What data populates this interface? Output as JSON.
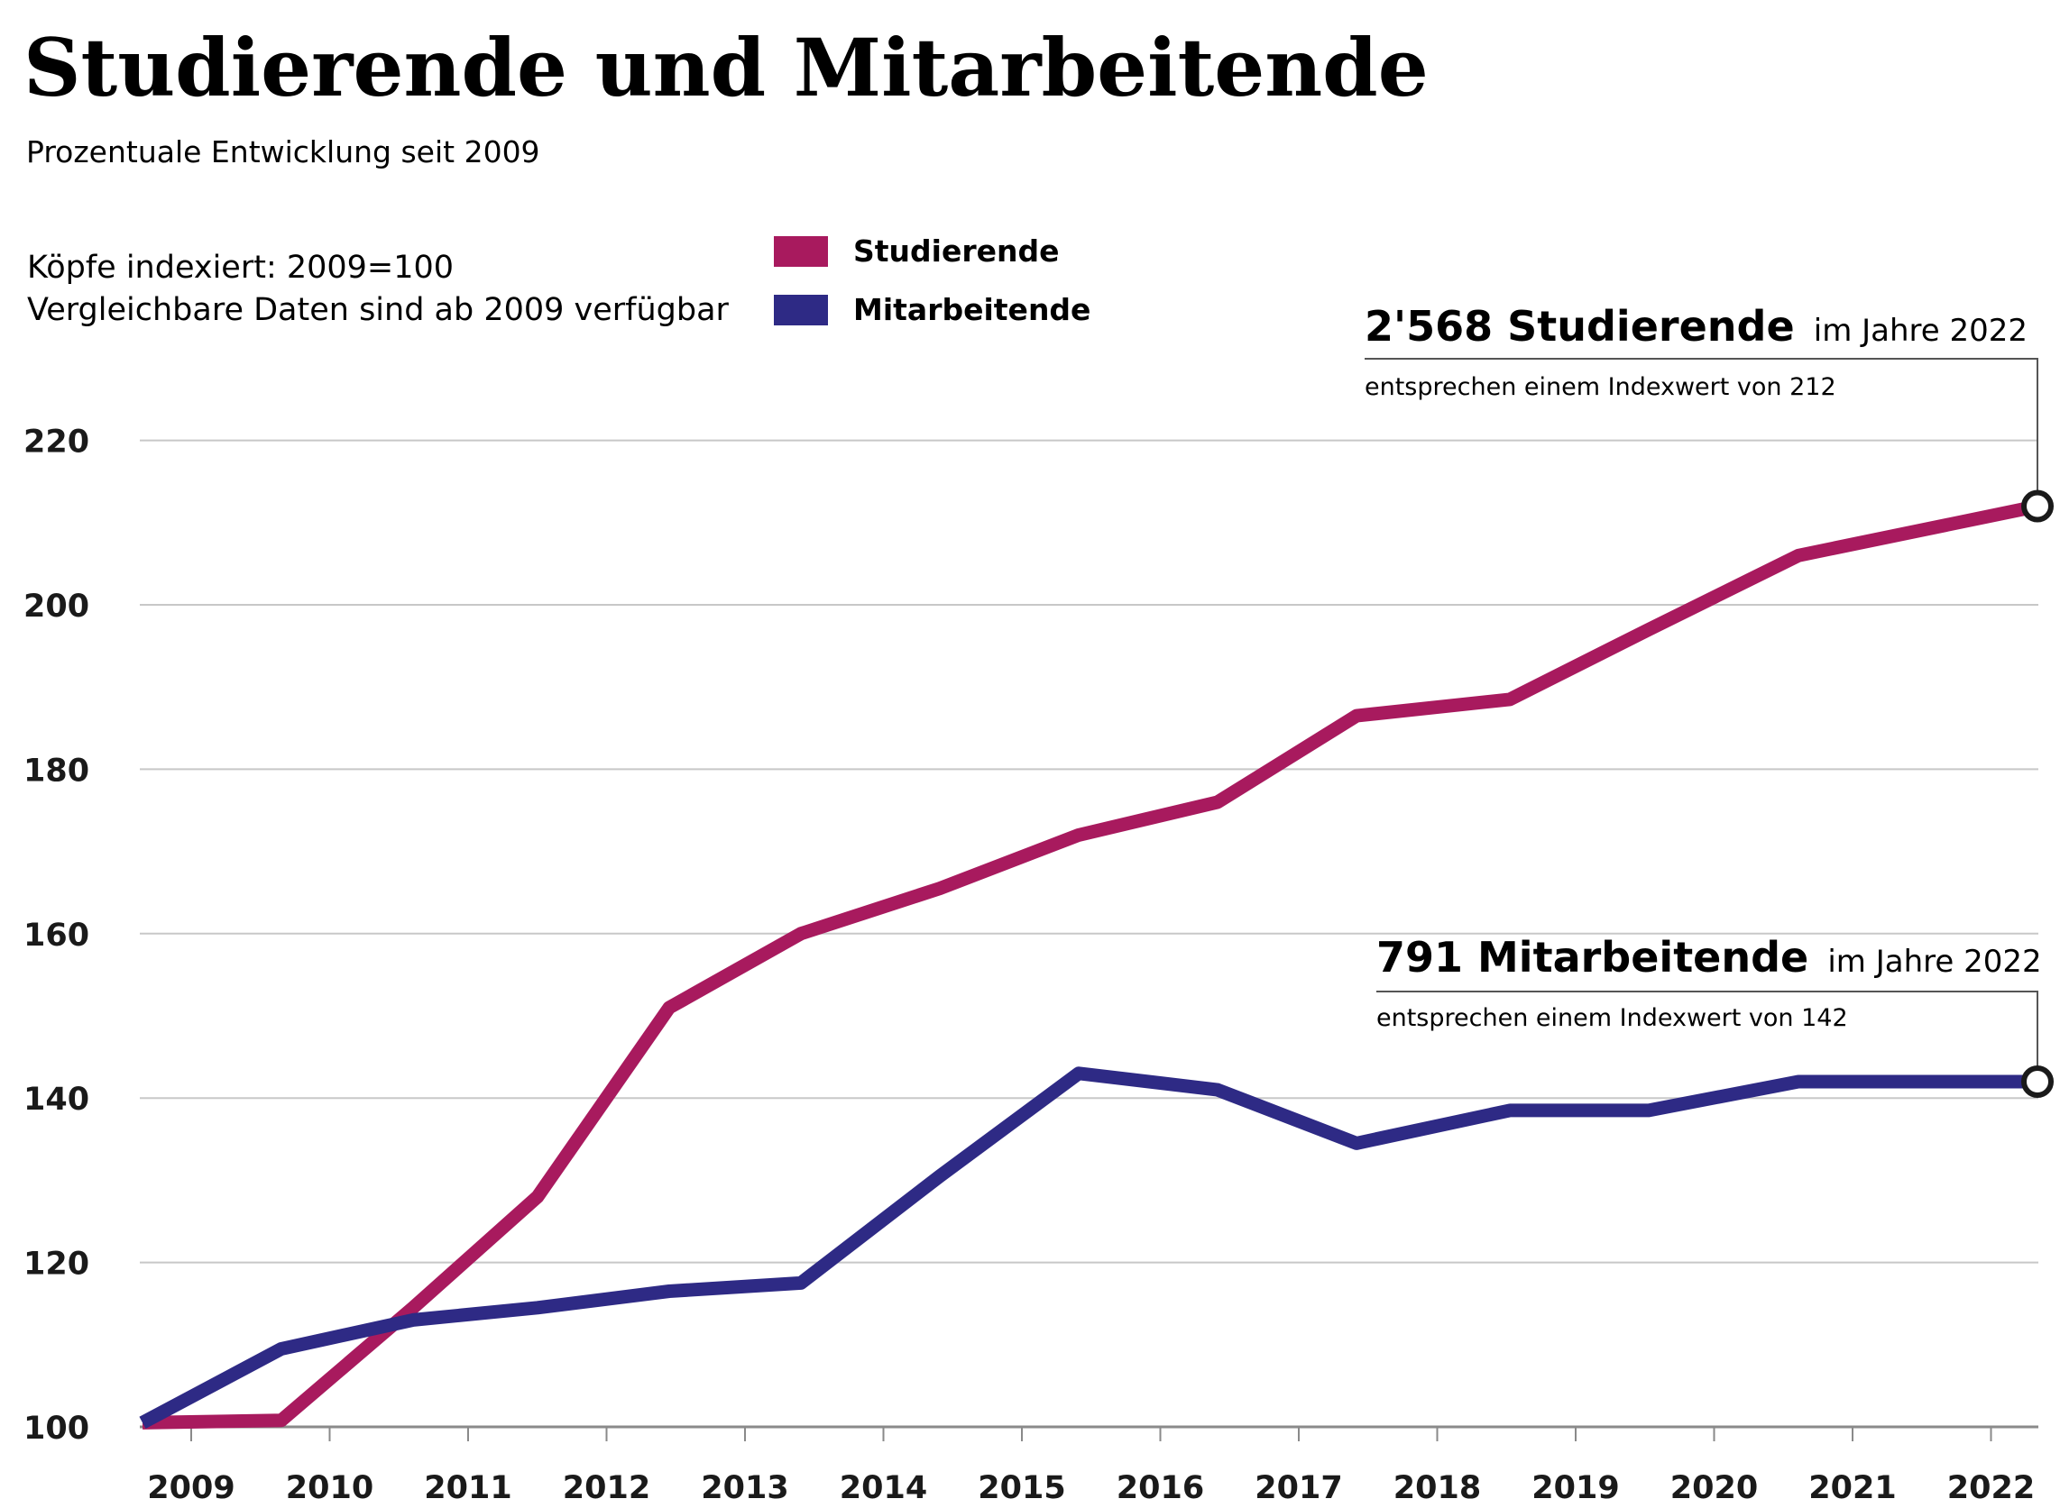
{
  "header": {
    "title": "Studierende und Mitarbeitende",
    "subtitle": "Prozentuale Entwicklung seit 2009"
  },
  "notes": [
    "Köpfe indexiert: 2009=100",
    "Vergleichbare Daten sind ab 2009 verfügbar"
  ],
  "annotations": [
    {
      "series": "Studierende",
      "headline": "2'568 Studierende",
      "suffix": "im Jahre 2022",
      "detail": "entsprechen einem Indexwert von 212"
    },
    {
      "series": "Mitarbeitende",
      "headline": "791 Mitarbeitende",
      "suffix": "im Jahre 2022",
      "detail": "entsprechen einem Indexwert von 142"
    }
  ],
  "colors": {
    "Studierende": "#a81a5e",
    "Mitarbeitende": "#2e2a85",
    "grid": "#c8c8c8",
    "axis": "#8a8a8a",
    "text": "#1a1a1a"
  },
  "chart_data": {
    "type": "line",
    "title": "Studierende und Mitarbeitende",
    "subtitle": "Prozentuale Entwicklung seit 2009",
    "x": [
      "2009",
      "2010",
      "2011",
      "2012",
      "2013",
      "2014",
      "2015",
      "2016",
      "2017",
      "2018",
      "2019",
      "2020",
      "2021",
      "2022"
    ],
    "yticks": [
      100,
      120,
      140,
      160,
      180,
      200,
      220
    ],
    "ylim": [
      100,
      225
    ],
    "grid": true,
    "legend_position": "top-center",
    "series": [
      {
        "name": "Studierende",
        "values": [
          100.5,
          100.8,
          114.5,
          128,
          151,
          160,
          165.5,
          172,
          176,
          186.5,
          188.5,
          197,
          206,
          212
        ]
      },
      {
        "name": "Mitarbeitende",
        "values": [
          100.5,
          109.5,
          113,
          114.5,
          116.5,
          117.5,
          130.5,
          143,
          141,
          134.5,
          138.5,
          138.5,
          142,
          142
        ]
      }
    ]
  }
}
